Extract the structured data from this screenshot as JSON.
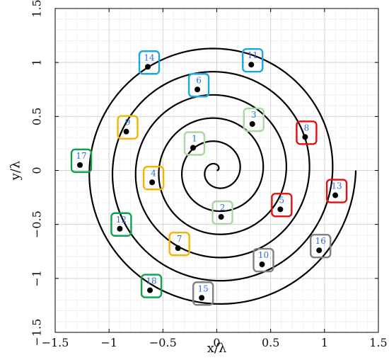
{
  "chart_data": {
    "type": "scatter",
    "xlabel": "x/λ",
    "ylabel": "y/λ",
    "xlim": [
      -1.5,
      1.5
    ],
    "ylim": [
      -1.5,
      1.5
    ],
    "xticks": [
      -1.5,
      -1,
      -0.5,
      0,
      0.5,
      1,
      1.5
    ],
    "xtick_labels": [
      "−1.5",
      "−1",
      "−0.5",
      "0",
      "0.5",
      "1",
      "1.5"
    ],
    "yticks": [
      -1.5,
      -1,
      -0.5,
      0,
      0.5,
      1,
      1.5
    ],
    "ytick_labels": [
      "−1.5",
      "−1",
      "−0.5",
      "0",
      "0.5",
      "1",
      "1.5"
    ],
    "grid": true,
    "minor_grid": true,
    "spiral": {
      "center": [
        0,
        0
      ],
      "start_angle_deg": 0,
      "end_radius": 1.29,
      "turns": 6.0,
      "color": "#000000"
    },
    "group_colors": {
      "light_green": "#a8d8a0",
      "yellow": "#f5b400",
      "red": "#e01010",
      "blue": "#1aa7e0",
      "gray": "#808080",
      "green": "#10a050"
    },
    "label_color": "#2f6fd6",
    "points": [
      {
        "label": "1",
        "x": -0.22,
        "y": 0.21,
        "group": "light_green"
      },
      {
        "label": "2",
        "x": 0.04,
        "y": -0.43,
        "group": "light_green"
      },
      {
        "label": "3",
        "x": 0.33,
        "y": 0.43,
        "group": "light_green"
      },
      {
        "label": "4",
        "x": -0.6,
        "y": -0.11,
        "group": "yellow"
      },
      {
        "label": "5",
        "x": 0.59,
        "y": -0.36,
        "group": "red"
      },
      {
        "label": "6",
        "x": -0.18,
        "y": 0.75,
        "group": "blue"
      },
      {
        "label": "7",
        "x": -0.36,
        "y": -0.72,
        "group": "yellow"
      },
      {
        "label": "8",
        "x": 0.82,
        "y": 0.31,
        "group": "red"
      },
      {
        "label": "9",
        "x": -0.84,
        "y": 0.36,
        "group": "yellow"
      },
      {
        "label": "10",
        "x": 0.42,
        "y": -0.87,
        "group": "gray"
      },
      {
        "label": "11",
        "x": 0.32,
        "y": 0.98,
        "group": "blue"
      },
      {
        "label": "12",
        "x": -0.9,
        "y": -0.54,
        "group": "green"
      },
      {
        "label": "13",
        "x": 1.1,
        "y": -0.23,
        "group": "red"
      },
      {
        "label": "14",
        "x": -0.64,
        "y": 0.96,
        "group": "blue"
      },
      {
        "label": "15",
        "x": -0.14,
        "y": -1.18,
        "group": "gray"
      },
      {
        "label": "16",
        "x": 0.95,
        "y": -0.74,
        "group": "gray"
      },
      {
        "label": "17",
        "x": -1.27,
        "y": 0.05,
        "group": "green"
      },
      {
        "label": "18",
        "x": -0.62,
        "y": -1.11,
        "group": "green"
      }
    ]
  }
}
